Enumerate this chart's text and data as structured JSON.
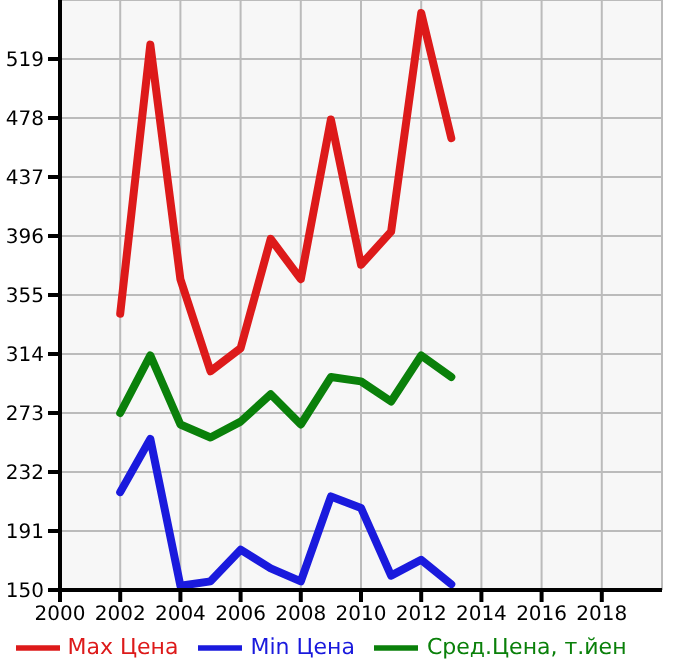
{
  "chart_data": {
    "type": "line",
    "x": [
      2002,
      2003,
      2004,
      2005,
      2006,
      2007,
      2008,
      2009,
      2010,
      2011,
      2012,
      2013
    ],
    "series": [
      {
        "name": "Max Цена",
        "color": "#dd1a1a",
        "values": [
          342,
          529,
          366,
          302,
          318,
          394,
          366,
          477,
          376,
          399,
          551,
          464
        ]
      },
      {
        "name": "Min Цена",
        "color": "#1a1add",
        "values": [
          218,
          255,
          153,
          156,
          178,
          165,
          156,
          215,
          207,
          160,
          171,
          154
        ]
      },
      {
        "name": "Сред.Цена, т.йен",
        "color": "#0a800a",
        "values": [
          273,
          313,
          265,
          256,
          267,
          286,
          265,
          298,
          295,
          281,
          313,
          298
        ]
      }
    ],
    "xlim": [
      2000,
      2020
    ],
    "xticks": [
      2000,
      2002,
      2004,
      2006,
      2008,
      2010,
      2012,
      2014,
      2016,
      2018
    ],
    "ylim": [
      150,
      560
    ],
    "yticks": [
      150,
      191,
      232,
      273,
      314,
      355,
      396,
      437,
      478,
      519
    ],
    "grid": true,
    "legend": "bottom",
    "marker": "none",
    "line_style": "solid"
  }
}
